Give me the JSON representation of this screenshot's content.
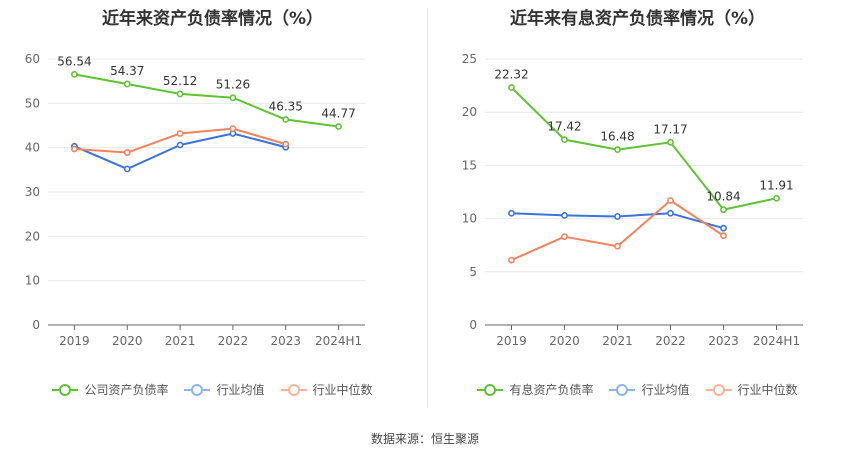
{
  "source_label": "数据来源：恒生聚源",
  "colors": {
    "green": "#5ec232",
    "blue": "#3a73d9",
    "orange": "#f0835f",
    "legend_blue": "#8fb3ee",
    "legend_orange": "#f5b39a"
  },
  "chart_data": [
    {
      "type": "line",
      "title": "近年来资产负债率情况（%）",
      "categories": [
        "2019",
        "2020",
        "2021",
        "2022",
        "2023",
        "2024H1"
      ],
      "ylim": [
        0,
        60
      ],
      "yticks": [
        0,
        10,
        20,
        30,
        40,
        50,
        60
      ],
      "series": [
        {
          "name": "公司资产负债率",
          "color": "#5ec232",
          "legend_color": "#5ec232",
          "labeled": true,
          "values": [
            56.54,
            54.37,
            52.12,
            51.26,
            46.35,
            44.77
          ],
          "labels": [
            "56.54",
            "54.37",
            "52.12",
            "51.26",
            "46.35",
            "44.77"
          ]
        },
        {
          "name": "行业均值",
          "color": "#3a73d9",
          "legend_color": "#8fb3ee",
          "labeled": false,
          "values": [
            40.3,
            35.2,
            40.6,
            43.2,
            40.1,
            null
          ]
        },
        {
          "name": "行业中位数",
          "color": "#f0835f",
          "legend_color": "#f5b39a",
          "labeled": false,
          "values": [
            39.7,
            38.9,
            43.2,
            44.3,
            40.8,
            null
          ]
        }
      ]
    },
    {
      "type": "line",
      "title": "近年来有息资产负债率情况（%）",
      "categories": [
        "2019",
        "2020",
        "2021",
        "2022",
        "2023",
        "2024H1"
      ],
      "ylim": [
        0,
        25
      ],
      "yticks": [
        0,
        5,
        10,
        15,
        20,
        25
      ],
      "series": [
        {
          "name": "有息资产负债率",
          "color": "#5ec232",
          "legend_color": "#5ec232",
          "labeled": true,
          "values": [
            22.32,
            17.42,
            16.48,
            17.17,
            10.84,
            11.91
          ],
          "labels": [
            "22.32",
            "17.42",
            "16.48",
            "17.17",
            "10.84",
            "11.91"
          ]
        },
        {
          "name": "行业均值",
          "color": "#3a73d9",
          "legend_color": "#8fb3ee",
          "labeled": false,
          "values": [
            10.5,
            10.3,
            10.2,
            10.5,
            9.1,
            null
          ]
        },
        {
          "name": "行业中位数",
          "color": "#f0835f",
          "legend_color": "#f5b39a",
          "labeled": false,
          "values": [
            6.1,
            8.3,
            7.4,
            11.7,
            8.4,
            null
          ]
        }
      ]
    }
  ]
}
